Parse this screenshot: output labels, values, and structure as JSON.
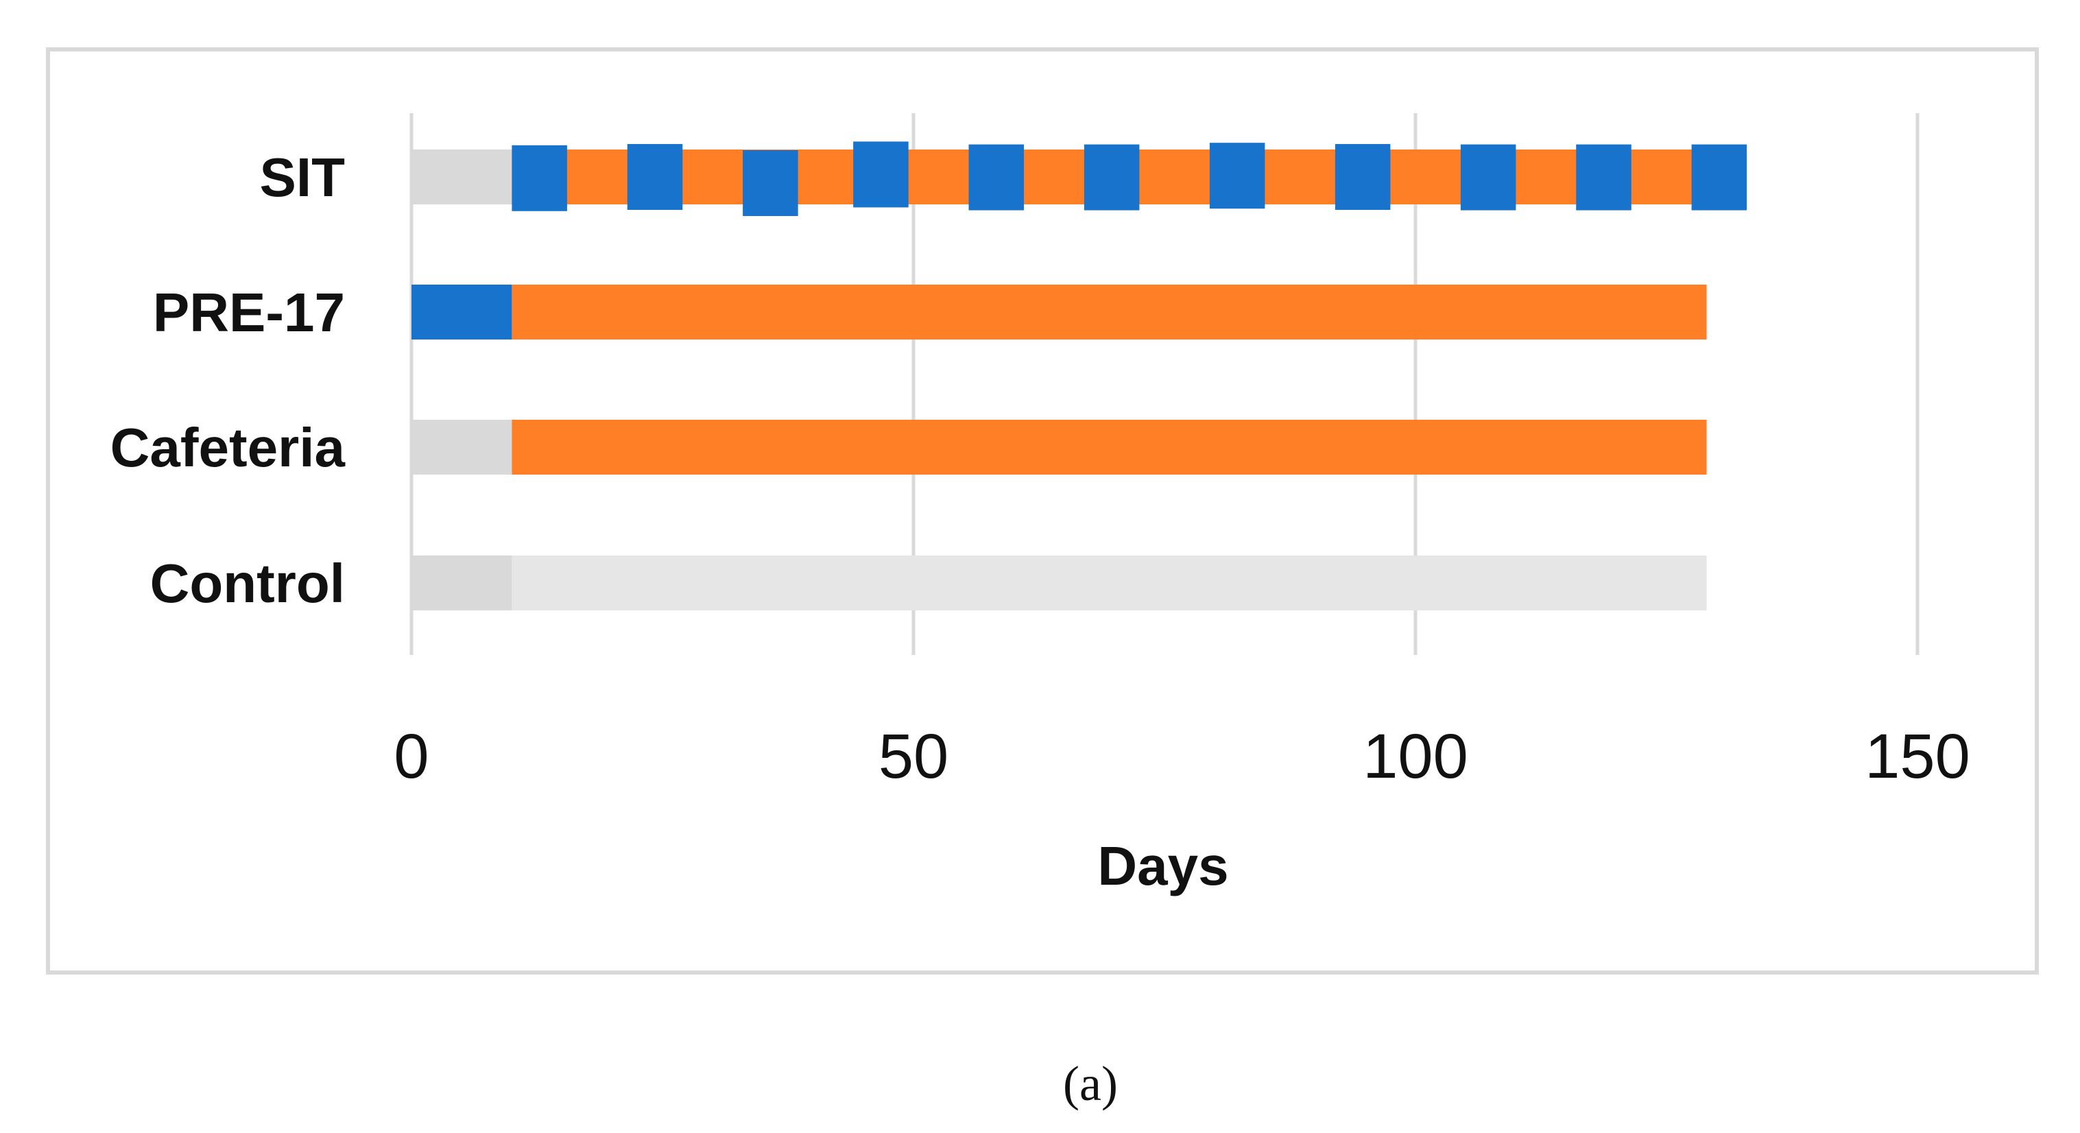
{
  "chart_data": {
    "type": "bar",
    "orientation": "horizontal",
    "xlabel": "Days",
    "xlim": [
      0,
      150
    ],
    "xticks": [
      0,
      50,
      100,
      150
    ],
    "grid": "vertical",
    "categories": [
      "SIT",
      "PRE-17",
      "Cafeteria",
      "Control"
    ],
    "rows": [
      {
        "category": "SIT",
        "segments": [
          {
            "start": 0,
            "end": 10,
            "color": "#d9d9d9"
          },
          {
            "start": 10,
            "end": 129,
            "color": "#ff7f27"
          }
        ],
        "markers": [
          {
            "start": 10,
            "end": 15.5,
            "offset": 0.3
          },
          {
            "start": 21.5,
            "end": 27,
            "offset": 0
          },
          {
            "start": 33,
            "end": 38.5,
            "offset": 1.5
          },
          {
            "start": 44,
            "end": 49.5,
            "offset": -0.6
          },
          {
            "start": 55.5,
            "end": 61,
            "offset": 0.1
          },
          {
            "start": 67,
            "end": 72.5,
            "offset": 0.1
          },
          {
            "start": 79.5,
            "end": 85,
            "offset": -0.3
          },
          {
            "start": 92,
            "end": 97.5,
            "offset": 0
          },
          {
            "start": 104.5,
            "end": 110,
            "offset": 0.1
          },
          {
            "start": 116,
            "end": 121.5,
            "offset": 0.1
          },
          {
            "start": 127.5,
            "end": 133,
            "offset": 0.1
          }
        ],
        "marker_color": "#1873cc"
      },
      {
        "category": "PRE-17",
        "segments": [
          {
            "start": 0,
            "end": 10,
            "color": "#1873cc"
          },
          {
            "start": 10,
            "end": 129,
            "color": "#ff7f27"
          }
        ]
      },
      {
        "category": "Cafeteria",
        "segments": [
          {
            "start": 0,
            "end": 10,
            "color": "#d9d9d9"
          },
          {
            "start": 10,
            "end": 129,
            "color": "#ff7f27"
          }
        ]
      },
      {
        "category": "Control",
        "segments": [
          {
            "start": 0,
            "end": 10,
            "color": "#d9d9d9"
          },
          {
            "start": 10,
            "end": 129,
            "color": "#e7e6e6"
          }
        ]
      }
    ]
  },
  "caption": "(a)"
}
